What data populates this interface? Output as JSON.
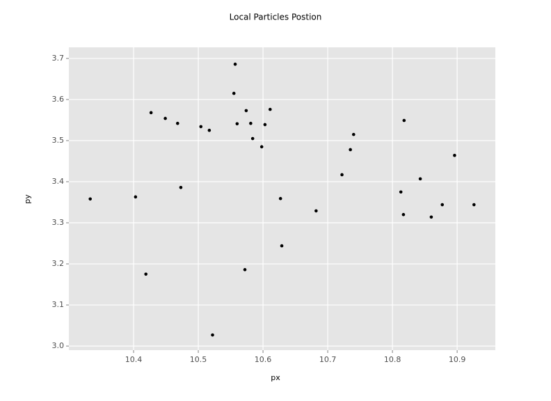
{
  "chart_data": {
    "type": "scatter",
    "title": "Local Particles Postion",
    "x_label": "px",
    "y_label": "py",
    "color": "#000000",
    "panel_color": "#e5e5e5",
    "grid": true,
    "xlim": [
      10.3,
      10.959
    ],
    "ylim": [
      2.99,
      3.727
    ],
    "xticks": [
      10.4,
      10.5,
      10.6,
      10.7,
      10.8,
      10.9
    ],
    "yticks": [
      {
        "value": 3.0,
        "label": "3.0"
      },
      3.1,
      3.2,
      3.3,
      3.4,
      3.5,
      3.6,
      3.7
    ],
    "x": [
      10.333,
      10.403,
      10.419,
      10.427,
      10.449,
      10.468,
      10.473,
      10.504,
      10.517,
      10.522,
      10.557,
      10.555,
      10.56,
      10.574,
      10.572,
      10.581,
      10.584,
      10.598,
      10.603,
      10.611,
      10.627,
      10.629,
      10.682,
      10.722,
      10.735,
      10.74,
      10.813,
      10.818,
      10.817,
      10.843,
      10.86,
      10.877,
      10.896,
      10.926
    ],
    "values": [
      3.358,
      3.363,
      3.175,
      3.568,
      3.554,
      3.542,
      3.386,
      3.534,
      3.525,
      3.027,
      3.686,
      3.615,
      3.541,
      3.573,
      3.186,
      3.542,
      3.505,
      3.485,
      3.539,
      3.576,
      3.359,
      3.244,
      3.329,
      3.417,
      3.478,
      3.515,
      3.375,
      3.549,
      3.32,
      3.407,
      3.314,
      3.344,
      3.464,
      3.344
    ]
  }
}
